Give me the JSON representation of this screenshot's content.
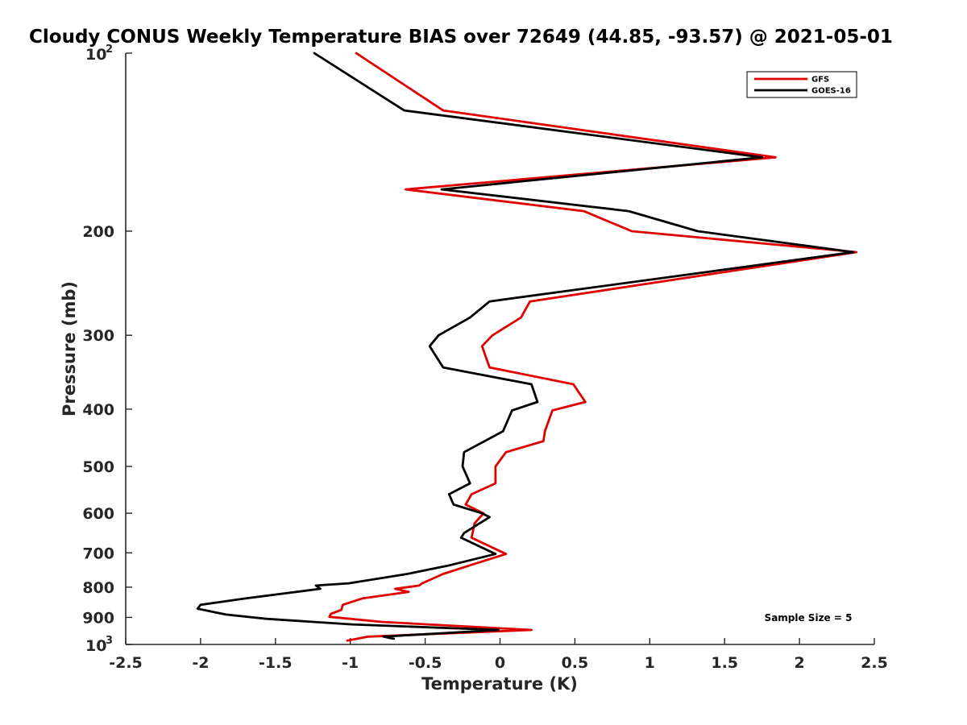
{
  "chart_data": {
    "type": "line",
    "title": "Cloudy CONUS Weekly Temperature BIAS over 72649 (44.85, -93.57) @ 2021-05-01",
    "xlabel": "Temperature (K)",
    "ylabel": "Pressure (mb)",
    "xlim": [
      -2.5,
      2.5
    ],
    "ylim": [
      1000,
      100
    ],
    "y_scale": "log",
    "y_reversed": true,
    "grid": false,
    "legend_position": "top-right",
    "x_ticks": [
      "-2.5",
      "-2",
      "-1.5",
      "-1",
      "-0.5",
      "0",
      "0.5",
      "1",
      "1.5",
      "2",
      "2.5"
    ],
    "y_ticks": [
      {
        "value": 100,
        "base": "10",
        "exp": "2"
      },
      {
        "value": 200,
        "label": "200"
      },
      {
        "value": 300,
        "label": "300"
      },
      {
        "value": 400,
        "label": "400"
      },
      {
        "value": 500,
        "label": "500"
      },
      {
        "value": 600,
        "label": "600"
      },
      {
        "value": 700,
        "label": "700"
      },
      {
        "value": 800,
        "label": "800"
      },
      {
        "value": 900,
        "label": "900"
      },
      {
        "value": 1000,
        "base": "10",
        "exp": "3"
      }
    ],
    "annotation": "Sample Size = 5",
    "series": [
      {
        "name": "GFS",
        "color": "#e00000",
        "points": [
          [
            -0.96,
            100
          ],
          [
            -0.38,
            125
          ],
          [
            1.84,
            150
          ],
          [
            -0.63,
            170
          ],
          [
            0.56,
            185
          ],
          [
            0.88,
            200
          ],
          [
            2.38,
            217
          ],
          [
            0.2,
            263
          ],
          [
            0.14,
            280
          ],
          [
            -0.05,
            300
          ],
          [
            -0.12,
            313
          ],
          [
            -0.07,
            340
          ],
          [
            0.49,
            363
          ],
          [
            0.57,
            389
          ],
          [
            0.35,
            402
          ],
          [
            0.3,
            436
          ],
          [
            0.29,
            453
          ],
          [
            0.04,
            473
          ],
          [
            -0.03,
            500
          ],
          [
            -0.03,
            534
          ],
          [
            -0.19,
            557
          ],
          [
            -0.23,
            580
          ],
          [
            -0.11,
            600
          ],
          [
            -0.17,
            624
          ],
          [
            -0.19,
            660
          ],
          [
            0.04,
            703
          ],
          [
            -0.21,
            736
          ],
          [
            -0.38,
            760
          ],
          [
            -0.52,
            788
          ],
          [
            -0.54,
            795
          ],
          [
            -0.7,
            805
          ],
          [
            -0.61,
            815
          ],
          [
            -0.92,
            836
          ],
          [
            -1.05,
            857
          ],
          [
            -1.06,
            874
          ],
          [
            -1.13,
            888
          ],
          [
            -1.14,
            898
          ],
          [
            -0.79,
            916
          ],
          [
            0.21,
            945
          ],
          [
            -0.88,
            970
          ],
          [
            -1.02,
            985
          ]
        ]
      },
      {
        "name": "GOES-16",
        "color": "#000000",
        "points": [
          [
            -1.24,
            100
          ],
          [
            -0.64,
            125
          ],
          [
            1.75,
            150
          ],
          [
            -0.39,
            170
          ],
          [
            0.86,
            185
          ],
          [
            1.32,
            200
          ],
          [
            2.36,
            217
          ],
          [
            -0.07,
            263
          ],
          [
            -0.2,
            280
          ],
          [
            -0.41,
            300
          ],
          [
            -0.47,
            313
          ],
          [
            -0.38,
            340
          ],
          [
            0.21,
            363
          ],
          [
            0.25,
            389
          ],
          [
            0.08,
            402
          ],
          [
            0.02,
            436
          ],
          [
            -0.24,
            473
          ],
          [
            -0.25,
            500
          ],
          [
            -0.2,
            534
          ],
          [
            -0.34,
            557
          ],
          [
            -0.31,
            580
          ],
          [
            -0.12,
            600
          ],
          [
            -0.07,
            609
          ],
          [
            -0.24,
            648
          ],
          [
            -0.26,
            660
          ],
          [
            -0.03,
            703
          ],
          [
            -0.35,
            736
          ],
          [
            -0.62,
            760
          ],
          [
            -1.01,
            788
          ],
          [
            -1.23,
            795
          ],
          [
            -1.2,
            805
          ],
          [
            -1.7,
            836
          ],
          [
            -2.0,
            857
          ],
          [
            -2.02,
            870
          ],
          [
            -1.83,
            890
          ],
          [
            -1.56,
            905
          ],
          [
            -0.99,
            925
          ],
          [
            -0.01,
            945
          ],
          [
            -0.78,
            970
          ],
          [
            -0.71,
            978
          ],
          [
            -0.74,
            975
          ]
        ]
      }
    ]
  }
}
